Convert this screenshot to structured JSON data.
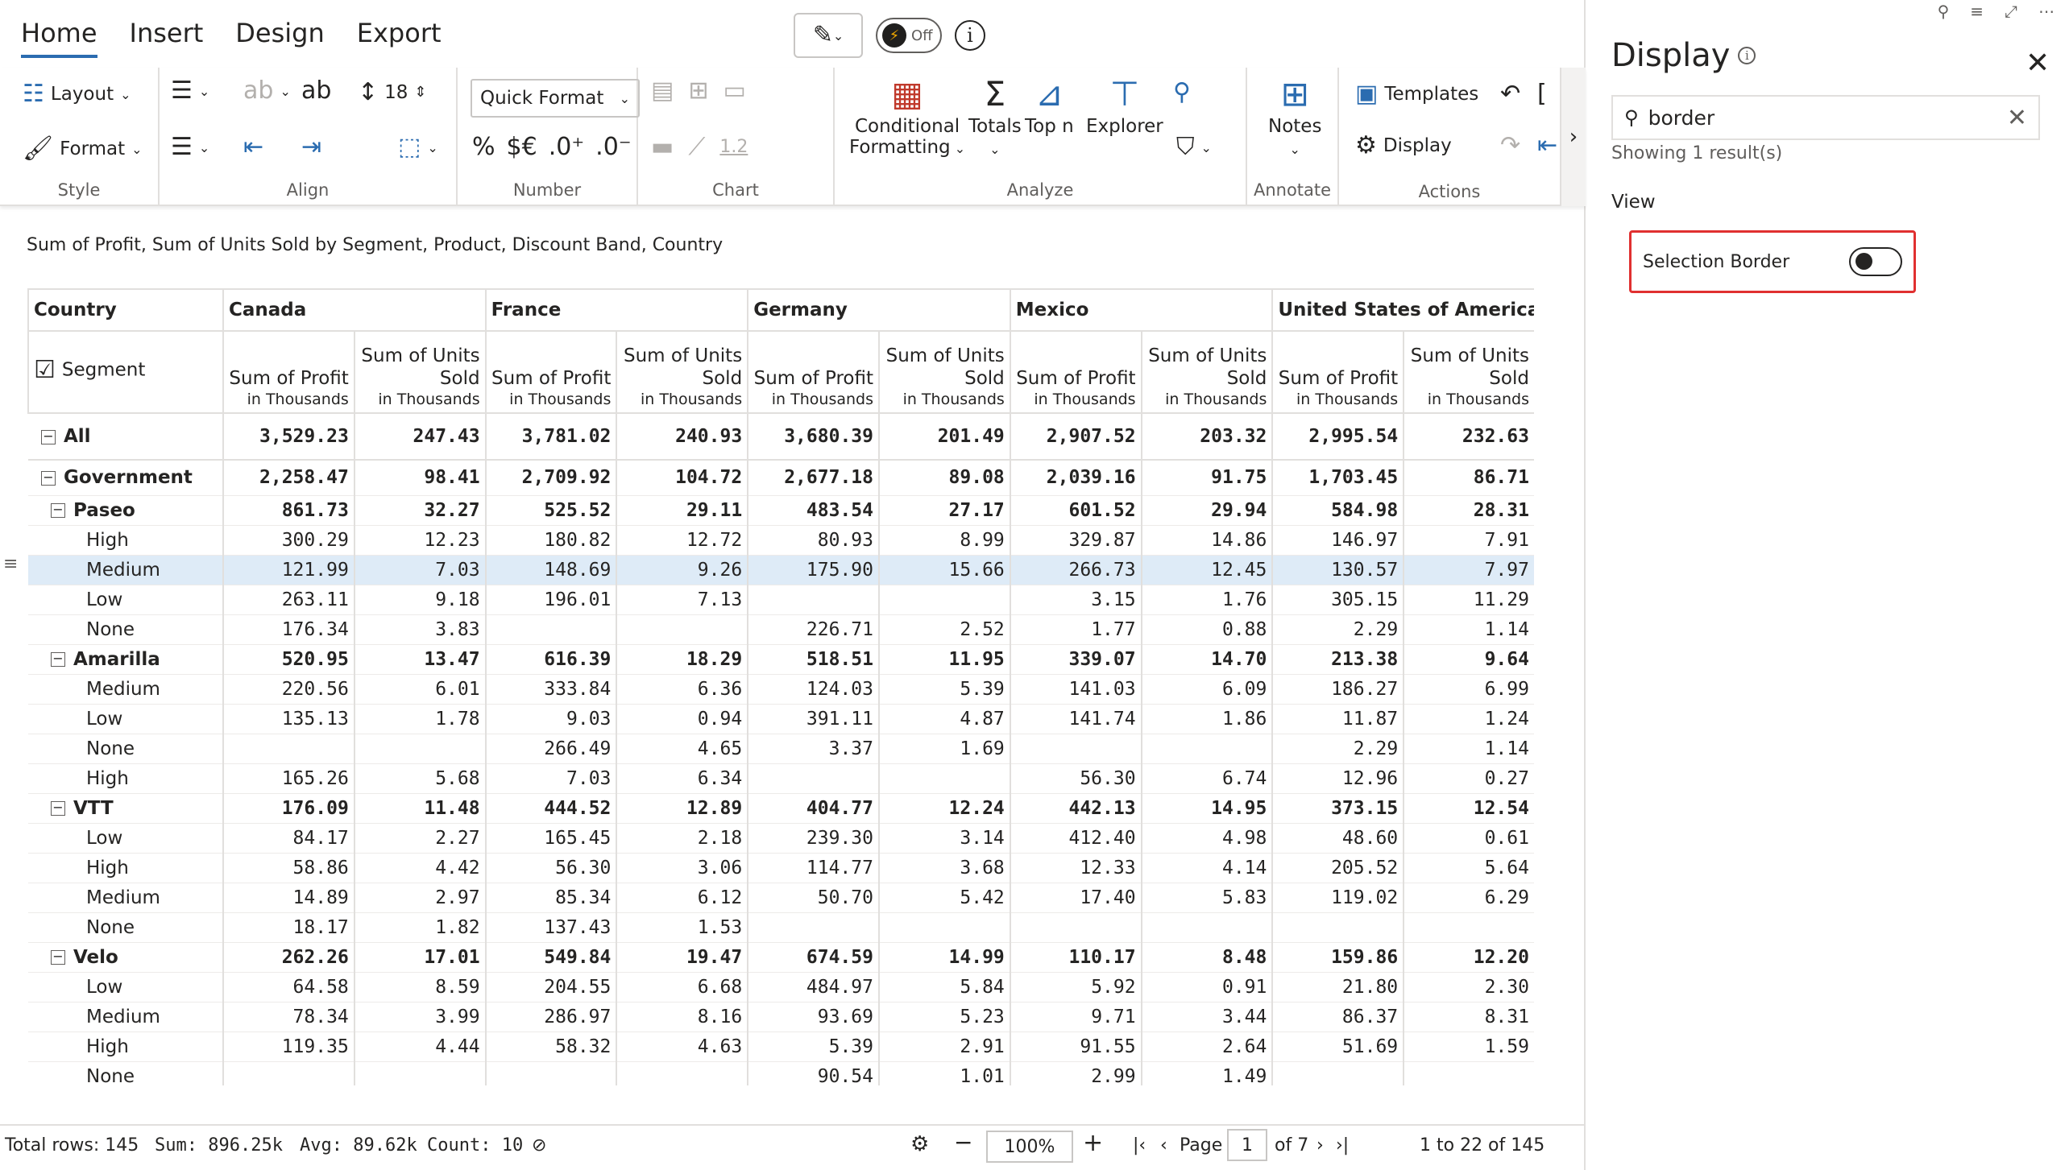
{
  "ribbon": {
    "tabs": [
      "Home",
      "Insert",
      "Design",
      "Export"
    ],
    "toggle_label": "Off",
    "groups": {
      "style": {
        "label": "Style",
        "layout": "Layout",
        "format": "Format"
      },
      "align": {
        "label": "Align",
        "spacing_value": "18"
      },
      "number": {
        "label": "Number",
        "quick_format": "Quick Format",
        "decimal_value": "1.2"
      },
      "chart": {
        "label": "Chart"
      },
      "analyze": {
        "label": "Analyze",
        "conditional": "Conditional",
        "formatting": "Formatting",
        "totals": "Totals",
        "topn": "Top n",
        "explorer": "Explorer"
      },
      "annotate": {
        "label": "Annotate",
        "notes": "Notes"
      },
      "actions": {
        "label": "Actions",
        "templates": "Templates",
        "display": "Display"
      }
    }
  },
  "title": "Sum of Profit, Sum of Units Sold by Segment, Product, Discount Band, Country",
  "table": {
    "corner_top": "Country",
    "corner_bottom": "Segment",
    "countries": [
      "Canada",
      "France",
      "Germany",
      "Mexico",
      "United States of America"
    ],
    "measure_profit": "Sum of Profit",
    "measure_units_1": "Sum of Units",
    "measure_units_2": "Sold",
    "measure_unit_label": "in Thousands",
    "rows": [
      {
        "label": "All",
        "level": 0,
        "kind": "all",
        "values": [
          "3,529.23",
          "247.43",
          "3,781.02",
          "240.93",
          "3,680.39",
          "201.49",
          "2,907.52",
          "203.32",
          "2,995.54",
          "232.63"
        ]
      },
      {
        "label": "Government",
        "level": 0,
        "kind": "seg",
        "values": [
          "2,258.47",
          "98.41",
          "2,709.92",
          "104.72",
          "2,677.18",
          "89.08",
          "2,039.16",
          "91.75",
          "1,703.45",
          "86.71"
        ]
      },
      {
        "label": "Paseo",
        "level": 1,
        "kind": "prod",
        "values": [
          "861.73",
          "32.27",
          "525.52",
          "29.11",
          "483.54",
          "27.17",
          "601.52",
          "29.94",
          "584.98",
          "28.31"
        ]
      },
      {
        "label": "High",
        "level": 2,
        "kind": "leaf",
        "values": [
          "300.29",
          "12.23",
          "180.82",
          "12.72",
          "80.93",
          "8.99",
          "329.87",
          "14.86",
          "146.97",
          "7.91"
        ]
      },
      {
        "label": "Medium",
        "level": 2,
        "kind": "leaf",
        "highlight": true,
        "values": [
          "121.99",
          "7.03",
          "148.69",
          "9.26",
          "175.90",
          "15.66",
          "266.73",
          "12.45",
          "130.57",
          "7.97"
        ]
      },
      {
        "label": "Low",
        "level": 2,
        "kind": "leaf",
        "values": [
          "263.11",
          "9.18",
          "196.01",
          "7.13",
          "",
          "",
          "3.15",
          "1.76",
          "305.15",
          "11.29"
        ]
      },
      {
        "label": "None",
        "level": 2,
        "kind": "leaf",
        "values": [
          "176.34",
          "3.83",
          "",
          "",
          "226.71",
          "2.52",
          "1.77",
          "0.88",
          "2.29",
          "1.14"
        ]
      },
      {
        "label": "Amarilla",
        "level": 1,
        "kind": "prod",
        "values": [
          "520.95",
          "13.47",
          "616.39",
          "18.29",
          "518.51",
          "11.95",
          "339.07",
          "14.70",
          "213.38",
          "9.64"
        ]
      },
      {
        "label": "Medium",
        "level": 2,
        "kind": "leaf",
        "values": [
          "220.56",
          "6.01",
          "333.84",
          "6.36",
          "124.03",
          "5.39",
          "141.03",
          "6.09",
          "186.27",
          "6.99"
        ]
      },
      {
        "label": "Low",
        "level": 2,
        "kind": "leaf",
        "values": [
          "135.13",
          "1.78",
          "9.03",
          "0.94",
          "391.11",
          "4.87",
          "141.74",
          "1.86",
          "11.87",
          "1.24"
        ]
      },
      {
        "label": "None",
        "level": 2,
        "kind": "leaf",
        "values": [
          "",
          "",
          "266.49",
          "4.65",
          "3.37",
          "1.69",
          "",
          "",
          "2.29",
          "1.14"
        ]
      },
      {
        "label": "High",
        "level": 2,
        "kind": "leaf",
        "values": [
          "165.26",
          "5.68",
          "7.03",
          "6.34",
          "",
          "",
          "56.30",
          "6.74",
          "12.96",
          "0.27"
        ]
      },
      {
        "label": "VTT",
        "level": 1,
        "kind": "prod",
        "values": [
          "176.09",
          "11.48",
          "444.52",
          "12.89",
          "404.77",
          "12.24",
          "442.13",
          "14.95",
          "373.15",
          "12.54"
        ]
      },
      {
        "label": "Low",
        "level": 2,
        "kind": "leaf",
        "values": [
          "84.17",
          "2.27",
          "165.45",
          "2.18",
          "239.30",
          "3.14",
          "412.40",
          "4.98",
          "48.60",
          "0.61"
        ]
      },
      {
        "label": "High",
        "level": 2,
        "kind": "leaf",
        "values": [
          "58.86",
          "4.42",
          "56.30",
          "3.06",
          "114.77",
          "3.68",
          "12.33",
          "4.14",
          "205.52",
          "5.64"
        ]
      },
      {
        "label": "Medium",
        "level": 2,
        "kind": "leaf",
        "values": [
          "14.89",
          "2.97",
          "85.34",
          "6.12",
          "50.70",
          "5.42",
          "17.40",
          "5.83",
          "119.02",
          "6.29"
        ]
      },
      {
        "label": "None",
        "level": 2,
        "kind": "leaf",
        "values": [
          "18.17",
          "1.82",
          "137.43",
          "1.53",
          "",
          "",
          "",
          "",
          "",
          ""
        ]
      },
      {
        "label": "Velo",
        "level": 1,
        "kind": "prod",
        "values": [
          "262.26",
          "17.01",
          "549.84",
          "19.47",
          "674.59",
          "14.99",
          "110.17",
          "8.48",
          "159.86",
          "12.20"
        ]
      },
      {
        "label": "Low",
        "level": 2,
        "kind": "leaf",
        "values": [
          "64.58",
          "8.59",
          "204.55",
          "6.68",
          "484.97",
          "5.84",
          "5.92",
          "0.91",
          "21.80",
          "2.30"
        ]
      },
      {
        "label": "Medium",
        "level": 2,
        "kind": "leaf",
        "values": [
          "78.34",
          "3.99",
          "286.97",
          "8.16",
          "93.69",
          "5.23",
          "9.71",
          "3.44",
          "86.37",
          "8.31"
        ]
      },
      {
        "label": "High",
        "level": 2,
        "kind": "leaf",
        "values": [
          "119.35",
          "4.44",
          "58.32",
          "4.63",
          "5.39",
          "2.91",
          "91.55",
          "2.64",
          "51.69",
          "1.59"
        ]
      },
      {
        "label": "None",
        "level": 2,
        "kind": "leaf",
        "values": [
          "",
          "",
          "",
          "",
          "90.54",
          "1.01",
          "2.99",
          "1.49",
          "",
          ""
        ]
      }
    ]
  },
  "status": {
    "total_rows": "Total rows: 145",
    "sum": "Sum: 896.25k",
    "avg": "Avg: 89.62k",
    "count": "Count: 10",
    "zoom": "100%",
    "page_label": "Page",
    "page_value": "1",
    "page_of": "of 7",
    "range": "1 to 22 of 145"
  },
  "pane": {
    "title": "Display",
    "search_value": "border",
    "results": "Showing 1 result(s)",
    "section": "View",
    "option_label": "Selection Border",
    "option_on": false
  },
  "colors": {
    "accent": "#2b6cb0",
    "highlight_row": "#deebf7",
    "option_border": "#e03030"
  }
}
